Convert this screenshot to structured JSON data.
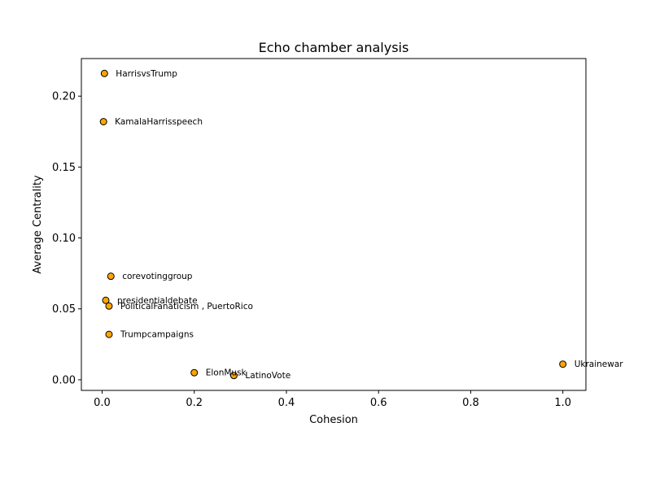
{
  "chart_data": {
    "type": "scatter",
    "title": "Echo chamber analysis",
    "xlabel": "Cohesion",
    "ylabel": "Average Centrality",
    "xlim": [
      -0.045,
      1.05
    ],
    "ylim": [
      -0.0075,
      0.2265
    ],
    "xticks": [
      0.0,
      0.2,
      0.4,
      0.6,
      0.8,
      1.0
    ],
    "xtick_labels": [
      "0.0",
      "0.2",
      "0.4",
      "0.6",
      "0.8",
      "1.0"
    ],
    "yticks": [
      0.0,
      0.05,
      0.1,
      0.15,
      0.2
    ],
    "ytick_labels": [
      "0.00",
      "0.05",
      "0.10",
      "0.15",
      "0.20"
    ],
    "grid": false,
    "marker_color": "#FFA500",
    "marker_edge": "#000000",
    "points": [
      {
        "label": "HarrisvsTrump",
        "x": 0.005,
        "y": 0.216
      },
      {
        "label": "KamalaHarrisspeech",
        "x": 0.003,
        "y": 0.182
      },
      {
        "label": "corevotinggroup",
        "x": 0.019,
        "y": 0.073
      },
      {
        "label": "presidentialdebate",
        "x": 0.008,
        "y": 0.056
      },
      {
        "label": "PoliticalFanaticism , PuertoRico",
        "x": 0.015,
        "y": 0.052
      },
      {
        "label": "Trumpcampaigns",
        "x": 0.015,
        "y": 0.032
      },
      {
        "label": "ElonMusk",
        "x": 0.2,
        "y": 0.005
      },
      {
        "label": "LatinoVote",
        "x": 0.286,
        "y": 0.003
      },
      {
        "label": "Ukrainewar",
        "x": 1.0,
        "y": 0.011
      }
    ]
  }
}
